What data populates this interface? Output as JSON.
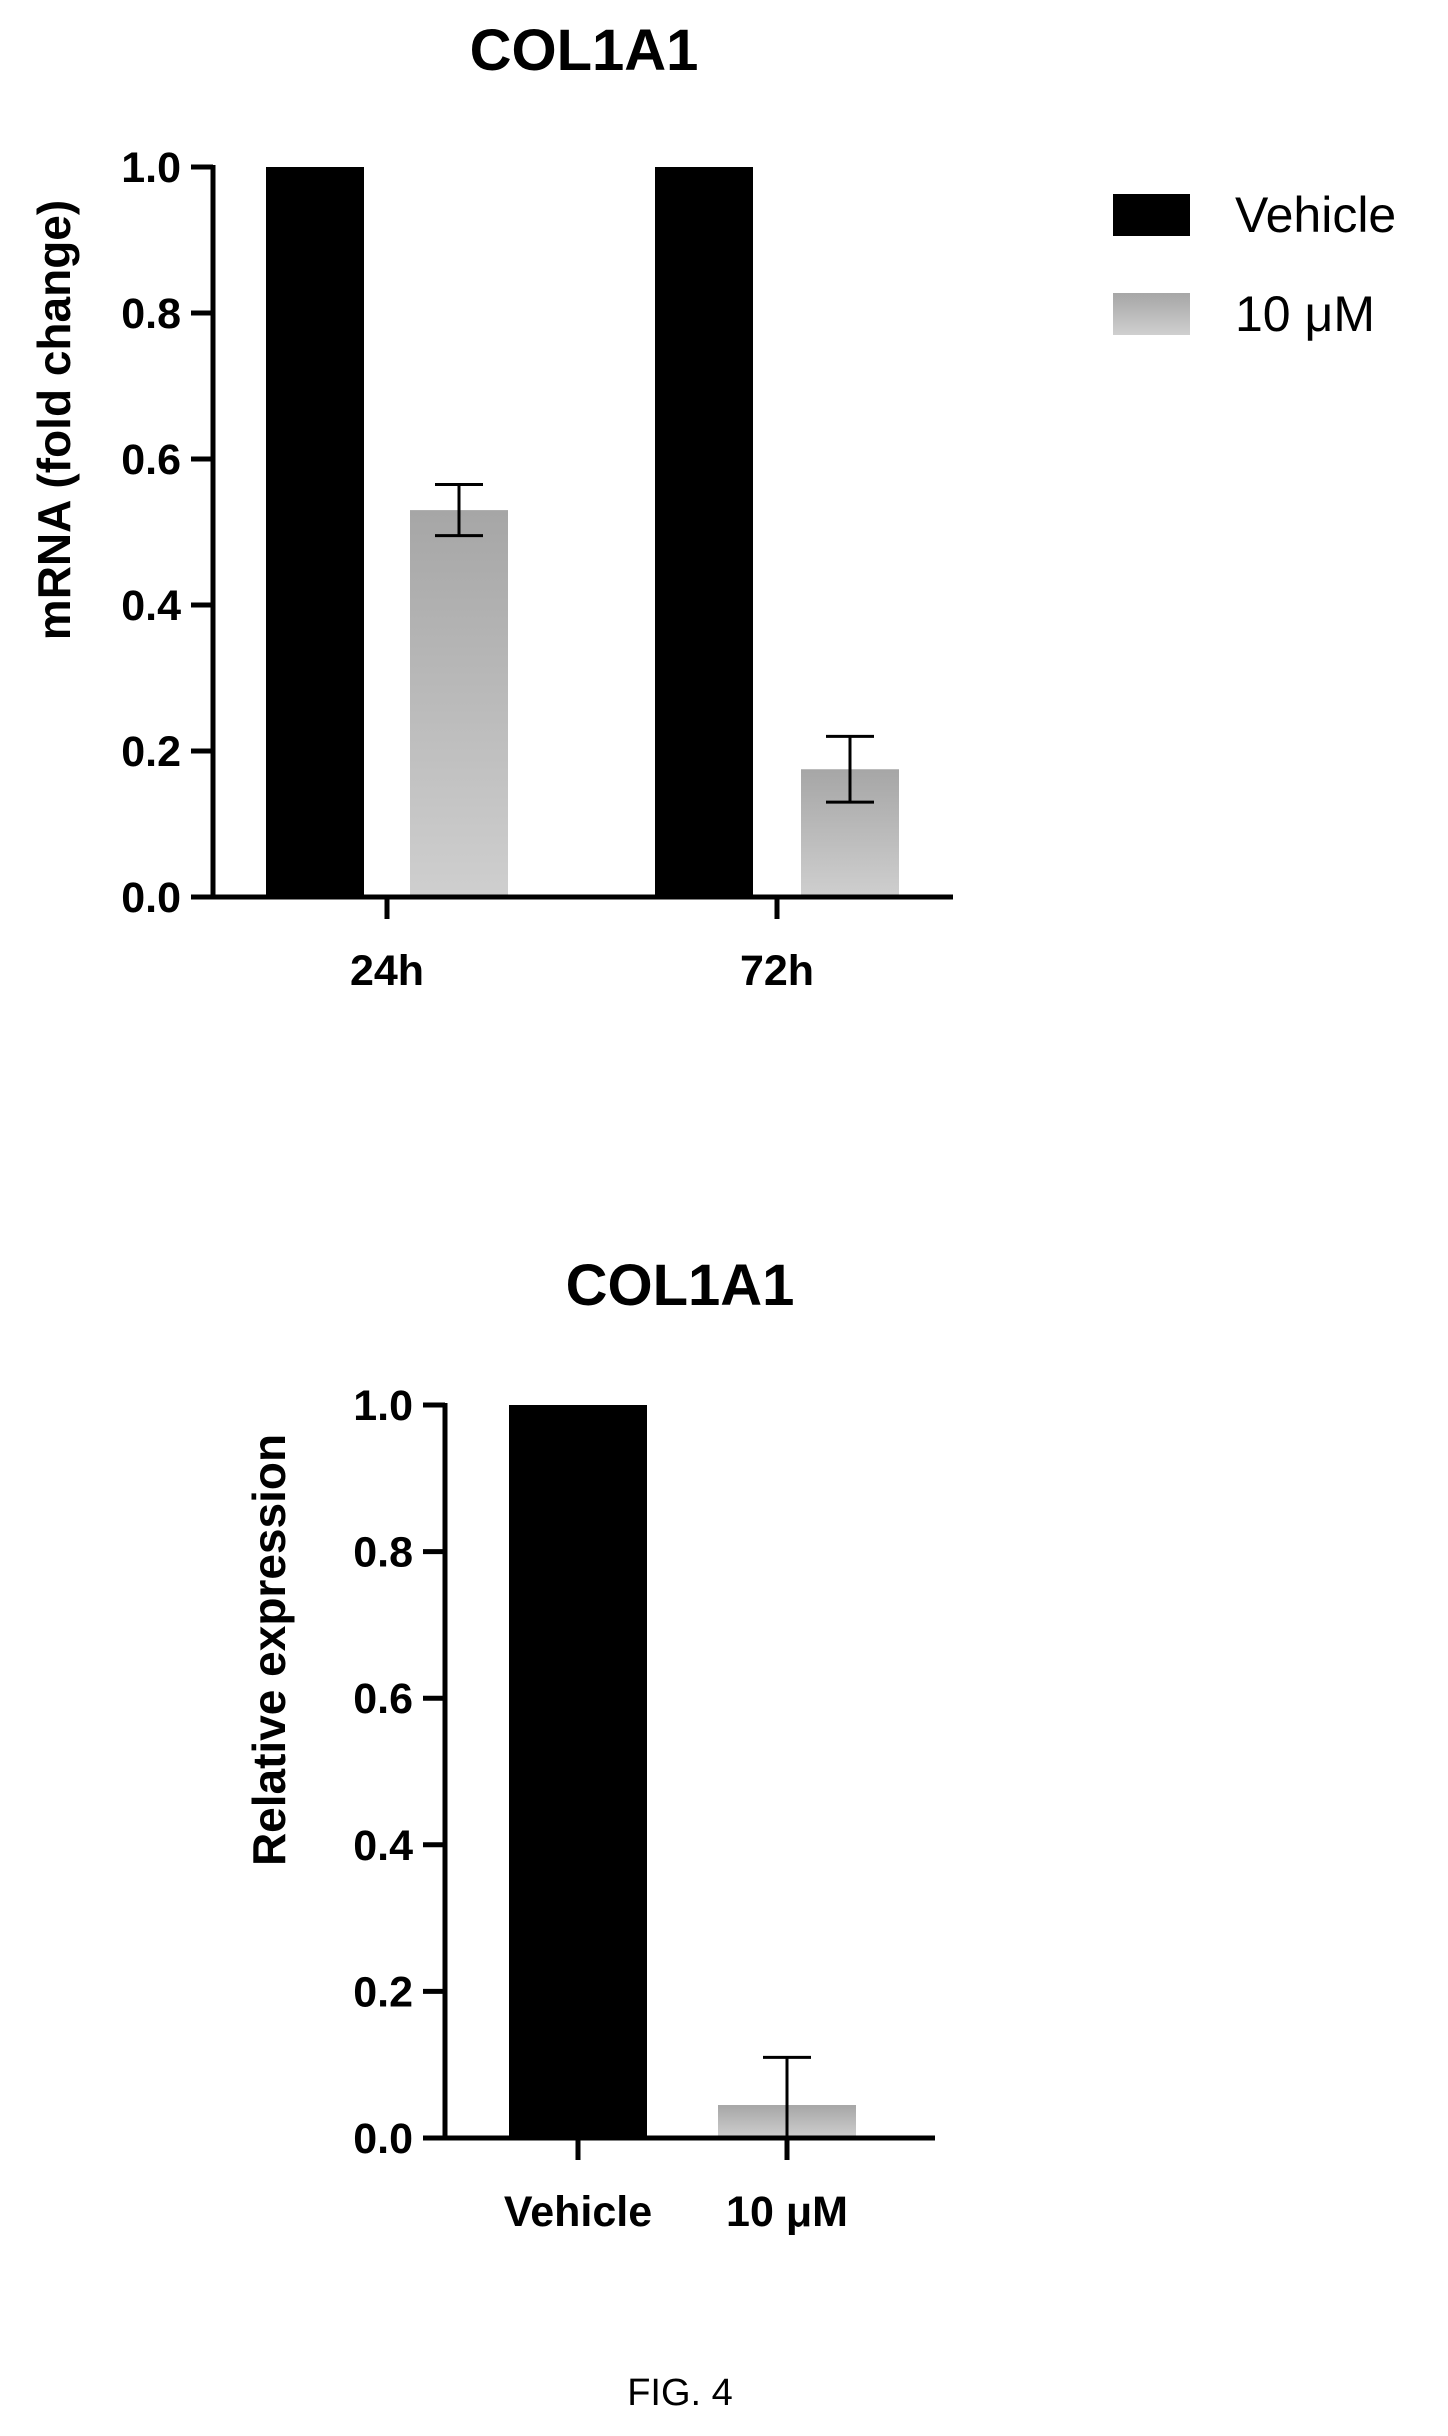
{
  "figure_label": "FIG. 4",
  "colors": {
    "vehicle": "#000000",
    "treated_top": "#a6a6a6",
    "treated_bottom": "#cfcfcf",
    "axis": "#000000"
  },
  "chart_data": [
    {
      "type": "bar",
      "title": "COL1A1",
      "xlabel": "",
      "ylabel": "mRNA (fold change)",
      "ylim": [
        0,
        1.0
      ],
      "yticks": [
        "0.0",
        "0.2",
        "0.4",
        "0.6",
        "0.8",
        "1.0"
      ],
      "categories": [
        "24h",
        "72h"
      ],
      "series": [
        {
          "name": "Vehicle",
          "values": [
            1.0,
            1.0
          ],
          "errors": [
            0,
            0
          ]
        },
        {
          "name": "10 μM",
          "values": [
            0.53,
            0.175
          ],
          "errors": [
            0.035,
            0.045
          ]
        }
      ],
      "legend": "top-right",
      "grid": false
    },
    {
      "type": "bar",
      "title": "COL1A1",
      "xlabel": "",
      "ylabel": "Relative expression",
      "ylim": [
        0,
        1.0
      ],
      "yticks": [
        "0.0",
        "0.2",
        "0.4",
        "0.6",
        "0.8",
        "1.0"
      ],
      "categories": [
        "Vehicle",
        "10 μM"
      ],
      "values": [
        1.0,
        0.045
      ],
      "errors": [
        0,
        0.065
      ],
      "grid": false
    }
  ]
}
